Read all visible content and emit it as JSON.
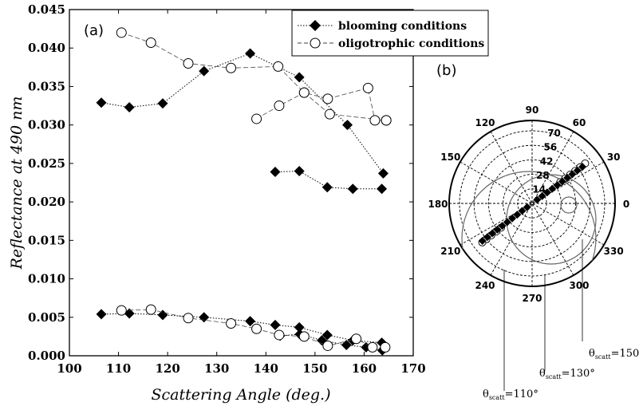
{
  "chart_data": [
    {
      "type": "scatter",
      "panel_label": "(a)",
      "xlabel": "Scattering Angle (deg.)",
      "ylabel": "Reflectance at 490 nm",
      "xlim": [
        100,
        170
      ],
      "ylim": [
        0,
        0.045
      ],
      "xticks": [
        "100",
        "110",
        "120",
        "130",
        "140",
        "150",
        "160",
        "170"
      ],
      "yticks": [
        "0.000",
        "0.005",
        "0.010",
        "0.015",
        "0.020",
        "0.025",
        "0.030",
        "0.035",
        "0.040",
        "0.045"
      ],
      "legend": [
        "blooming conditions",
        "oligotrophic conditions"
      ],
      "legend_position": "top-right",
      "series": [
        {
          "name": "blooming conditions",
          "marker": "filled-diamond",
          "line": "dotted",
          "x": [
            106.5,
            112.2,
            119.0,
            127.4,
            136.8,
            146.8,
            156.6,
            163.9
          ],
          "y": [
            0.0329,
            0.0323,
            0.0328,
            0.037,
            0.0393,
            0.0362,
            0.03,
            0.0237
          ]
        },
        {
          "name": "blooming conditions",
          "marker": "filled-diamond",
          "line": "dotted",
          "x": [
            141.9,
            146.8,
            152.5,
            157.7,
            163.6
          ],
          "y": [
            0.0239,
            0.024,
            0.0219,
            0.0217,
            0.0217
          ]
        },
        {
          "name": "blooming conditions",
          "marker": "filled-diamond",
          "line": "dotted",
          "x": [
            106.5,
            112.2,
            119.0,
            127.4,
            136.8,
            141.9,
            146.8,
            152.5,
            157.7,
            163.6
          ],
          "y": [
            0.0054,
            0.0055,
            0.0053,
            0.005,
            0.0045,
            0.004,
            0.0037,
            0.0027,
            0.002,
            0.0017
          ]
        },
        {
          "name": "blooming conditions",
          "marker": "filled-diamond",
          "line": "dotted",
          "x": [
            142.9,
            146.9,
            151.4,
            156.4,
            160.4,
            163.7
          ],
          "y": [
            0.0026,
            0.0028,
            0.002,
            0.0014,
            0.0011,
            0.0007
          ]
        },
        {
          "name": "oligotrophic conditions",
          "marker": "open-circle",
          "line": "dashed",
          "x": [
            110.6,
            116.6,
            124.2,
            132.9,
            142.5,
            147.8,
            153.0,
            164.5
          ],
          "y": [
            0.042,
            0.0407,
            0.038,
            0.0374,
            0.0376,
            0.0342,
            0.0314,
            0.0306
          ]
        },
        {
          "name": "oligotrophic conditions",
          "marker": "open-circle",
          "line": "dashed",
          "x": [
            138.1,
            142.7,
            147.8,
            152.6,
            160.8,
            162.2,
            164.5
          ],
          "y": [
            0.0308,
            0.0325,
            0.0342,
            0.0334,
            0.0348,
            0.0306,
            0.0306
          ]
        },
        {
          "name": "oligotrophic conditions",
          "marker": "open-circle",
          "line": "dashed",
          "x": [
            110.6,
            116.6,
            124.2,
            132.9,
            138.1,
            142.7,
            147.8,
            152.6,
            158.4,
            161.7,
            164.3
          ],
          "y": [
            0.0059,
            0.006,
            0.0049,
            0.0042,
            0.0035,
            0.0027,
            0.0025,
            0.0013,
            0.0022,
            0.0011,
            0.0011
          ]
        }
      ]
    },
    {
      "type": "polar",
      "panel_label": "(b)",
      "angle_ticks": [
        "0",
        "30",
        "60",
        "90",
        "120",
        "150",
        "180",
        "210",
        "240",
        "270",
        "300",
        "330"
      ],
      "radial_ticks": [
        "14",
        "28",
        "42",
        "56",
        "70"
      ],
      "rmax": 80,
      "radial_tick_angle_deg": 75,
      "scattering_angle_contours_deg": [
        110,
        130,
        150
      ],
      "contour_labels": [
        {
          "symbol": "θ",
          "sub": "scatt",
          "value": "=110°"
        },
        {
          "symbol": "θ",
          "sub": "scatt",
          "value": "=130°"
        },
        {
          "symbol": "θ",
          "sub": "scatt",
          "value": "=150°"
        }
      ],
      "observation_points": {
        "filled_angle_deg": 36,
        "filled_r": [
          6,
          12,
          18,
          24,
          30,
          36,
          42,
          48,
          54,
          60
        ],
        "open_angle_deg": 37,
        "open_r": [
          34,
          40,
          46,
          52,
          58,
          64
        ],
        "filled_angle_deg_2": 217,
        "filled_r_2": [
          6,
          12,
          18,
          24,
          30,
          36,
          42,
          48,
          54,
          60
        ],
        "open_angle_deg_2": 218,
        "open_r_2": [
          38,
          44,
          50,
          56,
          61
        ]
      }
    }
  ]
}
